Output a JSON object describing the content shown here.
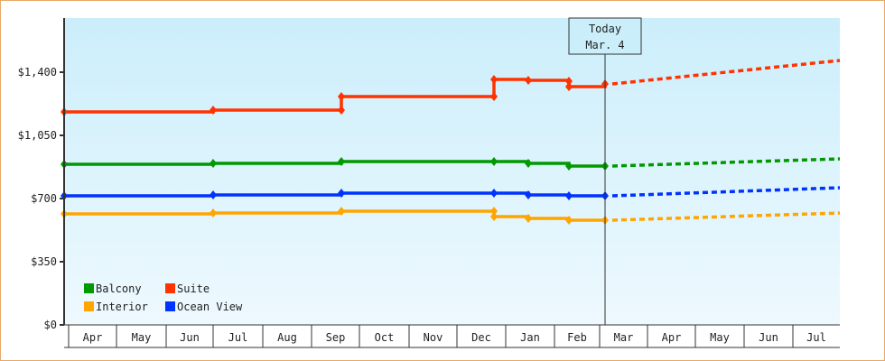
{
  "chart_data": {
    "type": "line",
    "title": "",
    "xlabel": "",
    "ylabel": "",
    "ylim": [
      0,
      1700
    ],
    "y_ticks": [
      "$0",
      "$350",
      "$700",
      "$1,050",
      "$1,400"
    ],
    "y_tick_values": [
      0,
      350,
      700,
      1050,
      1400
    ],
    "x_months": [
      "Apr",
      "May",
      "Jun",
      "Jul",
      "Aug",
      "Sep",
      "Oct",
      "Nov",
      "Dec",
      "Jan",
      "Feb",
      "Mar",
      "Apr",
      "May",
      "Jun",
      "Jul"
    ],
    "today_marker": {
      "line1": "Today",
      "line2": "Mar. 4"
    },
    "legend": [
      {
        "name": "Balcony",
        "color": "#009900"
      },
      {
        "name": "Suite",
        "color": "#ff3300"
      },
      {
        "name": "Interior",
        "color": "#ffa500"
      },
      {
        "name": "Ocean View",
        "color": "#0033ff"
      }
    ],
    "grid": false,
    "series": [
      {
        "name": "Suite",
        "color": "#ff3300",
        "history": [
          [
            "Apr",
            1180
          ],
          [
            "Jul",
            1190
          ],
          [
            "Sep",
            1190
          ],
          [
            "Sep",
            1265
          ],
          [
            "Dec",
            1265
          ],
          [
            "Dec",
            1360
          ],
          [
            "Jan",
            1355
          ],
          [
            "Feb",
            1350
          ],
          [
            "Feb",
            1320
          ],
          [
            "Mar",
            1335
          ]
        ],
        "forecast": [
          [
            "Mar",
            1335
          ],
          [
            "Jul",
            1465
          ]
        ]
      },
      {
        "name": "Balcony",
        "color": "#009900",
        "history": [
          [
            "Apr",
            890
          ],
          [
            "Jul",
            895
          ],
          [
            "Sep",
            905
          ],
          [
            "Dec",
            905
          ],
          [
            "Jan",
            895
          ],
          [
            "Feb",
            880
          ],
          [
            "Mar",
            880
          ]
        ],
        "forecast": [
          [
            "Mar",
            880
          ],
          [
            "Jul",
            920
          ]
        ]
      },
      {
        "name": "Ocean View",
        "color": "#0033ff",
        "history": [
          [
            "Apr",
            715
          ],
          [
            "Jul",
            720
          ],
          [
            "Sep",
            730
          ],
          [
            "Dec",
            730
          ],
          [
            "Jan",
            720
          ],
          [
            "Feb",
            715
          ],
          [
            "Mar",
            715
          ]
        ],
        "forecast": [
          [
            "Mar",
            715
          ],
          [
            "Jul",
            760
          ]
        ]
      },
      {
        "name": "Interior",
        "color": "#ffa500",
        "history": [
          [
            "Apr",
            615
          ],
          [
            "Jul",
            620
          ],
          [
            "Sep",
            630
          ],
          [
            "Dec",
            630
          ],
          [
            "Dec",
            600
          ],
          [
            "Jan",
            590
          ],
          [
            "Feb",
            580
          ],
          [
            "Mar",
            580
          ]
        ],
        "forecast": [
          [
            "Mar",
            580
          ],
          [
            "Jul",
            620
          ]
        ]
      }
    ]
  }
}
